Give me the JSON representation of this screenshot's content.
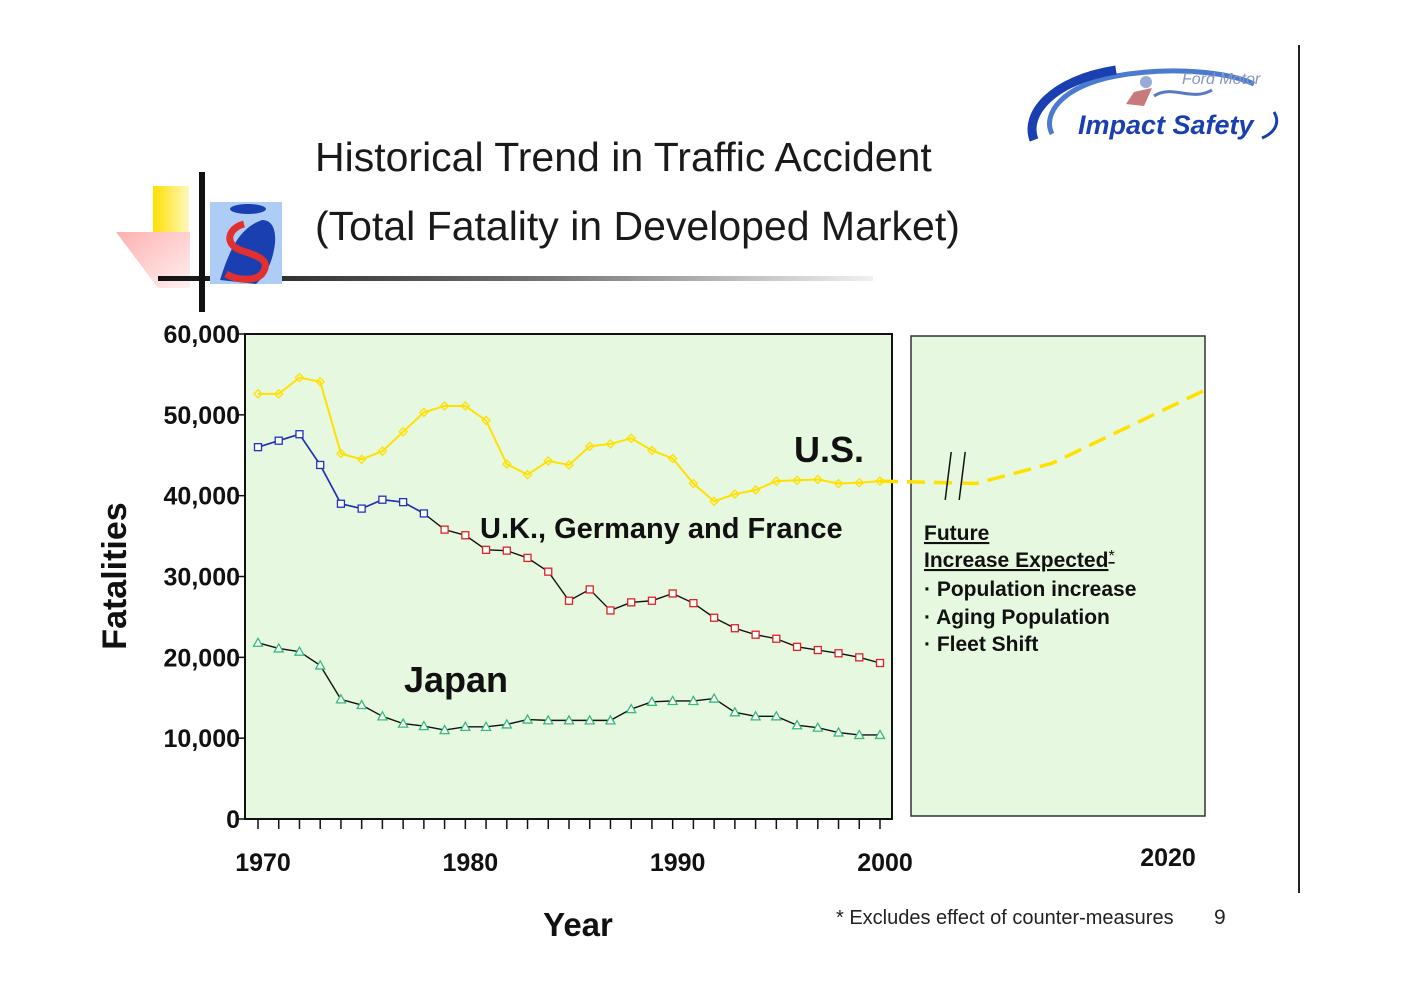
{
  "title": {
    "line1": "Historical Trend in Traffic Accident",
    "line2": "(Total Fatality in Developed Market)"
  },
  "logo": {
    "text": "Impact Safety",
    "script": "Ford Motor"
  },
  "page_number": "9",
  "footnote": "* Excludes effect of counter-measures",
  "future_note": {
    "heading1": "Future",
    "heading2": "Increase Expected",
    "heading2_mark": "*",
    "bullets": [
      "Population increase",
      "Aging Population",
      "Fleet Shift"
    ]
  },
  "colors": {
    "plot_bg": "#e6f8df",
    "us": "#ffe000",
    "eu_early": "#2233bb",
    "eu_late": "#dd2222",
    "japan": "#33bb77",
    "connector": "#111111"
  },
  "chart_data": {
    "type": "line",
    "xlabel": "Year",
    "ylabel": "Fatalities",
    "xlim": [
      1970,
      2020
    ],
    "ylim": [
      0,
      60000
    ],
    "x_ticks": [
      "1970",
      "1980",
      "1990",
      "2000",
      "2020"
    ],
    "y_ticks": [
      "0",
      "10,000",
      "20,000",
      "30,000",
      "40,000",
      "50,000",
      "60,000"
    ],
    "x": [
      1970,
      1971,
      1972,
      1973,
      1974,
      1975,
      1976,
      1977,
      1978,
      1979,
      1980,
      1981,
      1982,
      1983,
      1984,
      1985,
      1986,
      1987,
      1988,
      1989,
      1990,
      1991,
      1992,
      1993,
      1994,
      1995,
      1996,
      1997,
      1998,
      1999,
      2000
    ],
    "series": [
      {
        "name": "U.S.",
        "values": [
          52600,
          52600,
          54600,
          54100,
          45200,
          44500,
          45500,
          47900,
          50300,
          51100,
          51100,
          49300,
          43900,
          42600,
          44300,
          43800,
          46100,
          46400,
          47100,
          45600,
          44600,
          41500,
          39300,
          40200,
          40700,
          41800,
          41900,
          42000,
          41500,
          41600,
          41800
        ]
      },
      {
        "name": "U.K., Germany and France",
        "values": [
          46000,
          46800,
          47600,
          43800,
          39000,
          38400,
          39500,
          39200,
          37800,
          35800,
          35100,
          33300,
          33200,
          32300,
          30600,
          27000,
          28400,
          25800,
          26800,
          27000,
          27900,
          26700,
          24900,
          23600,
          22800,
          22300,
          21300,
          20900,
          20500,
          20000,
          19300
        ]
      },
      {
        "name": "Japan",
        "values": [
          21800,
          21100,
          20700,
          19000,
          14800,
          14100,
          12700,
          11800,
          11500,
          11000,
          11400,
          11400,
          11700,
          12300,
          12200,
          12200,
          12200,
          12200,
          13600,
          14500,
          14600,
          14600,
          14900,
          13200,
          12700,
          12700,
          11600,
          11300,
          10700,
          10400,
          10400
        ]
      }
    ],
    "projection": {
      "series": "U.S.",
      "x": [
        2000,
        2005,
        2010,
        2015,
        2020
      ],
      "values": [
        41800,
        41500,
        44000,
        48500,
        53000
      ]
    },
    "annotations": [
      "U.S.",
      "U.K., Germany and France",
      "Japan",
      "Future Increase Expected*"
    ]
  }
}
